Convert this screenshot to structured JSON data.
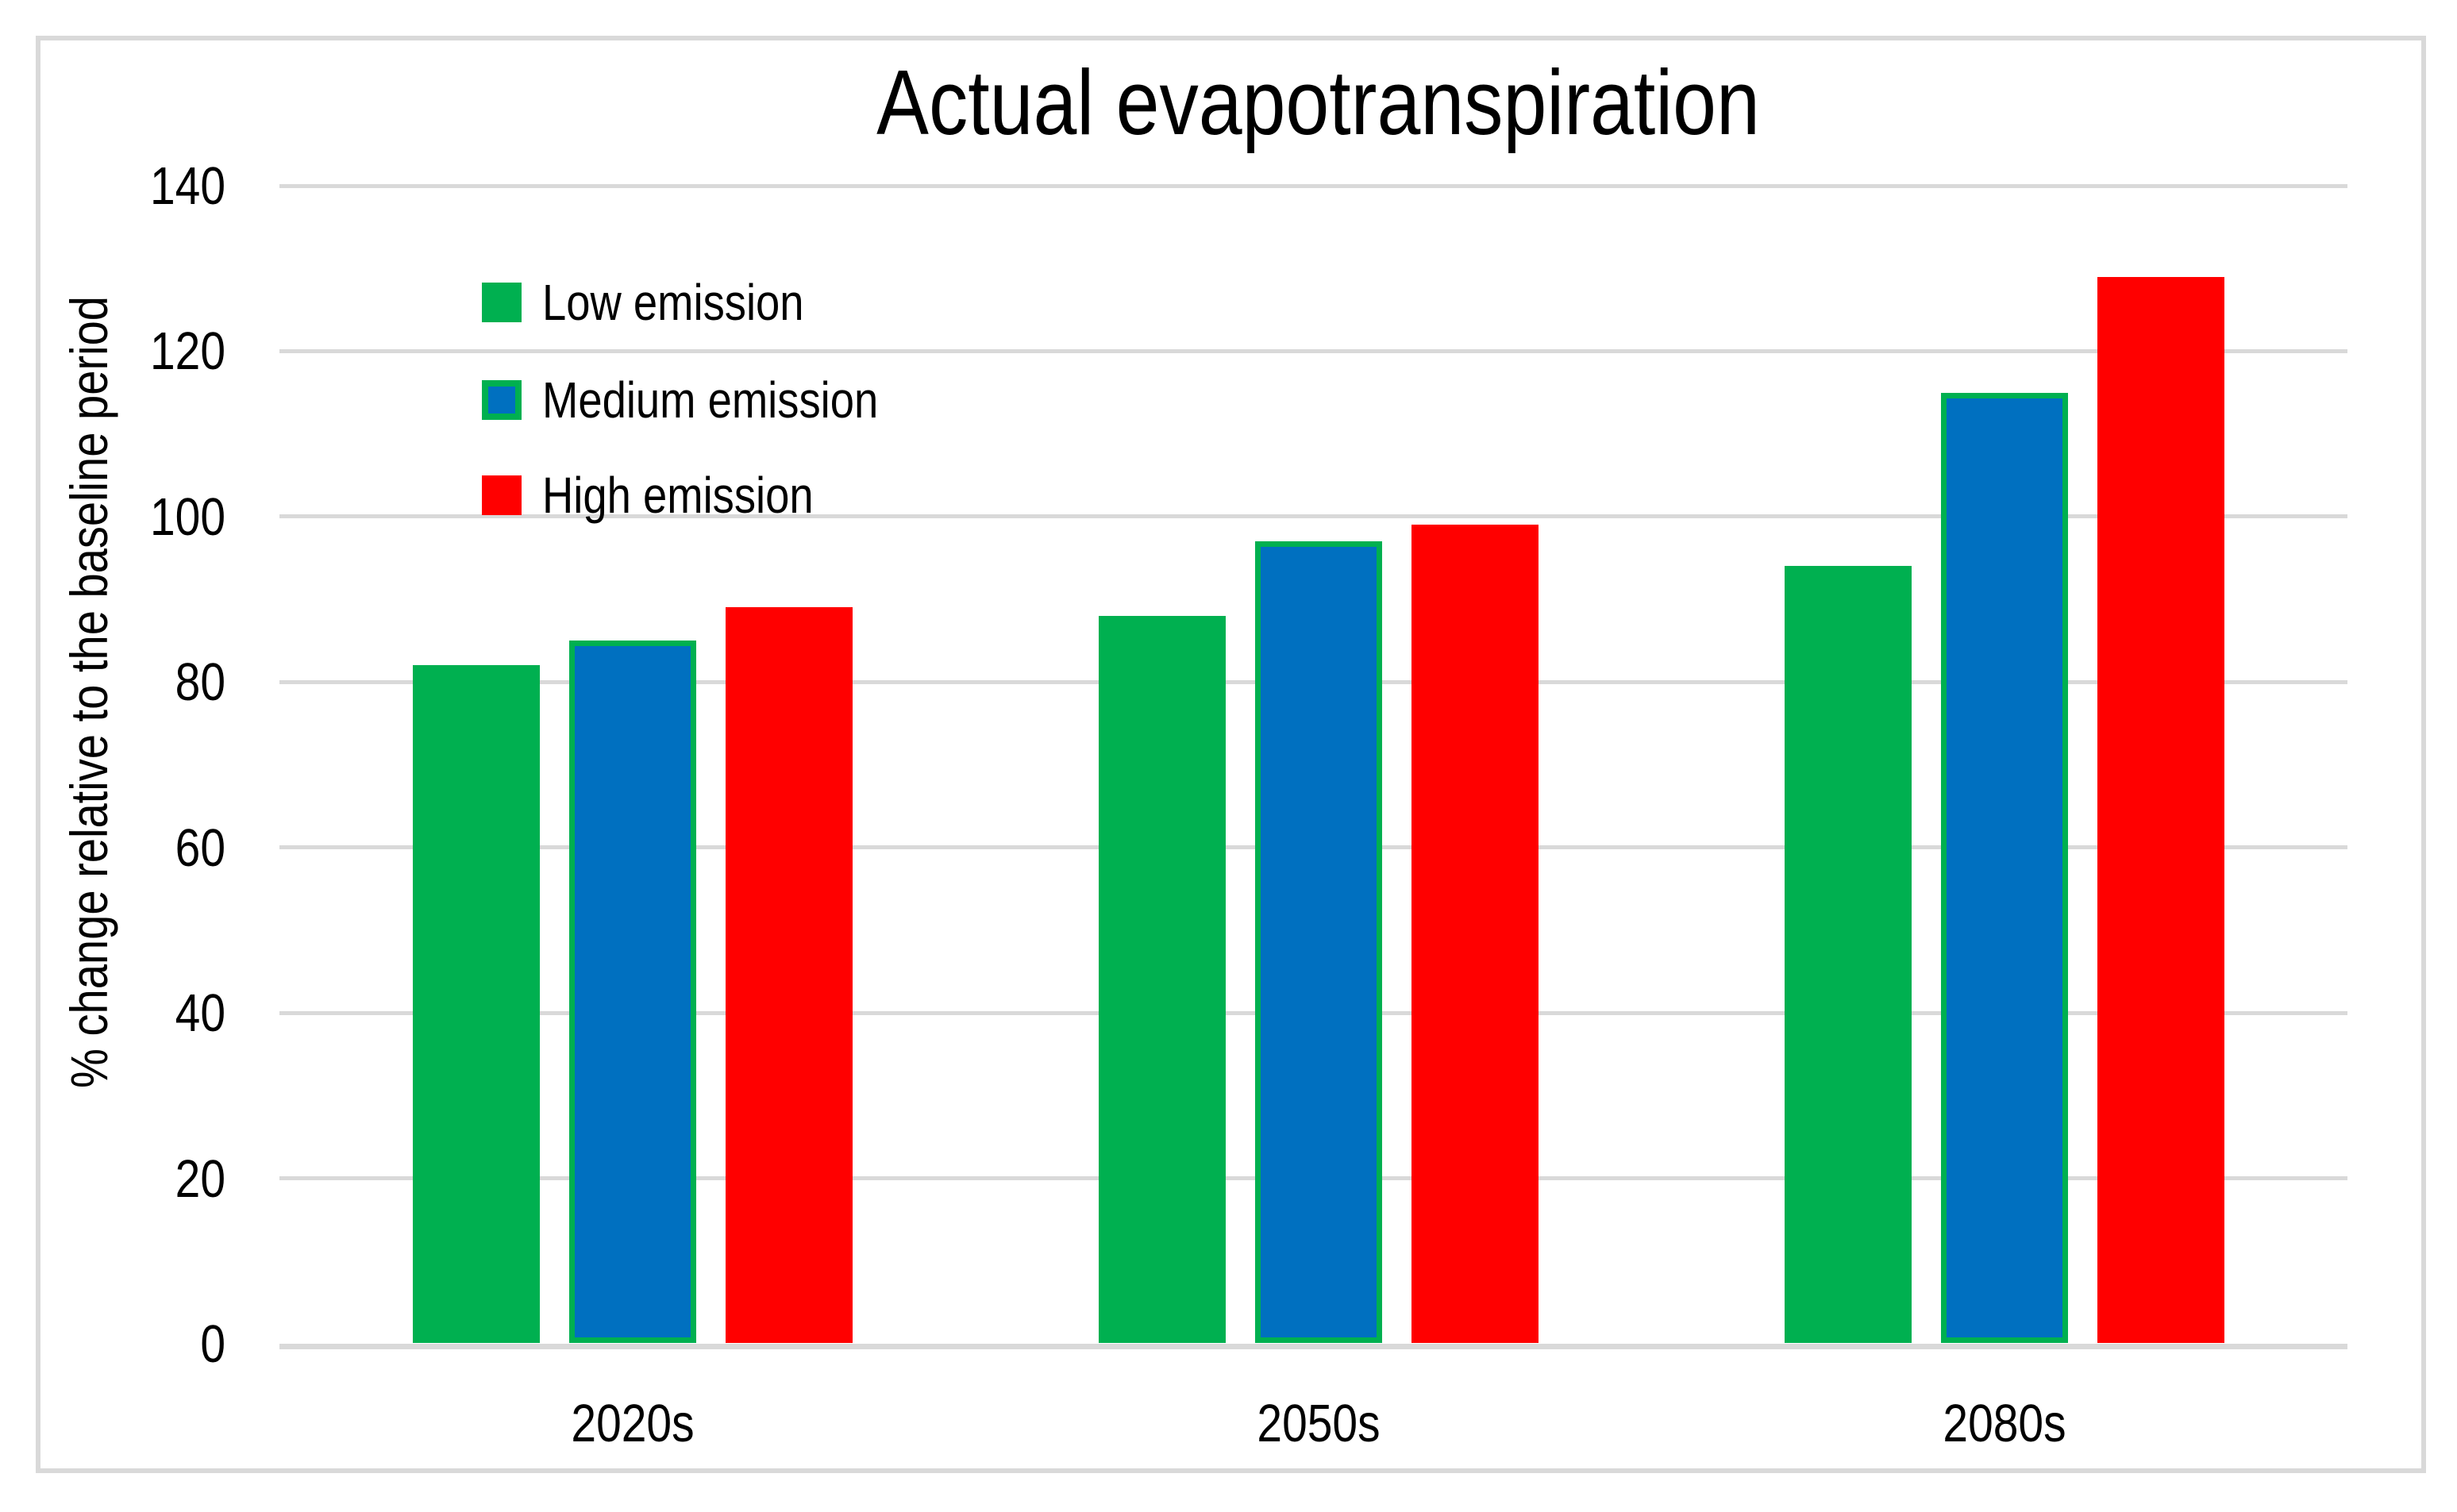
{
  "chart_data": {
    "type": "bar",
    "title": "Actual evapotranspiration",
    "ylabel": "% change relative to the baseline period",
    "xlabel": "",
    "categories": [
      "2020s",
      "2050s",
      "2080s"
    ],
    "series": [
      {
        "name": "Low emission",
        "color": "#00B050",
        "border_color": "#00B050",
        "values": [
          82,
          88,
          94
        ]
      },
      {
        "name": "Medium emission",
        "color": "#0070C0",
        "border_color": "#00B050",
        "values": [
          85,
          97,
          115
        ]
      },
      {
        "name": "High emission",
        "color": "#FF0000",
        "border_color": "#FF0000",
        "values": [
          89,
          99,
          129
        ]
      }
    ],
    "ylim": [
      0,
      140
    ],
    "ytick_step": 20,
    "yticks": [
      "0",
      "20",
      "40",
      "60",
      "80",
      "100",
      "120",
      "140"
    ],
    "grid": true,
    "legend_position": "inside-top-left"
  },
  "colors": {
    "grid": "#D9D9D9",
    "frame_border": "#D9D9D9",
    "background": "#FFFFFF",
    "text": "#000000"
  }
}
